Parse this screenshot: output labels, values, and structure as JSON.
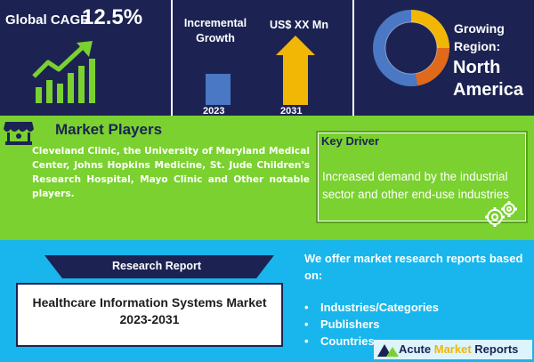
{
  "cagr": {
    "label": "Global CAGR",
    "value": "12.5%"
  },
  "chart": {
    "title": "Incremental Growth",
    "value_label": "US$ XX Mn",
    "years": [
      "2023",
      "2031"
    ]
  },
  "region": {
    "label": "Growing Region:",
    "value": "North America"
  },
  "market_players": {
    "title": "Market Players",
    "text": "Cleveland Clinic, the University of Maryland Medical Center, Johns Hopkins Medicine, St. Jude Children's Research Hospital, Mayo Clinic and Other notable players."
  },
  "key_driver": {
    "title": "Key Driver",
    "text": "Increased demand by the industrial sector and other end-use industries"
  },
  "report": {
    "ribbon_label": "Research Report",
    "title": "Healthcare Information Systems Market 2023-2031"
  },
  "offer": {
    "intro": "We offer market research reports based on:",
    "items": [
      "Industries/Categories",
      "Publishers",
      "Countries"
    ]
  },
  "brand": {
    "part1": "Acute ",
    "part2": "Market",
    "part3": " Reports"
  },
  "colors": {
    "navy": "#1c2353",
    "green": "#7ad12f",
    "sky": "#18b6ec",
    "gold": "#f2b705",
    "blue_bar": "#4a78c4"
  },
  "icons": [
    "growth-arrow-icon",
    "donut-chart-icon",
    "market-stall-icon",
    "gear-icon",
    "brand-logo-icon"
  ]
}
